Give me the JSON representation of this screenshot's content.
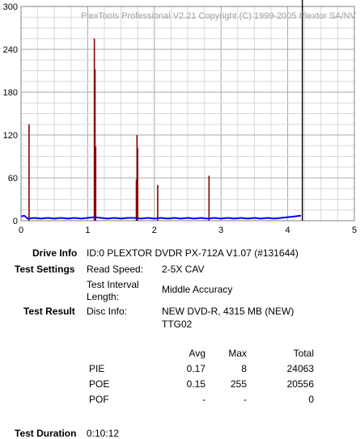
{
  "app": {
    "watermark": "PlexTools Professional V2.21 Copyright (C) 1999-2005 Plextor SA/NV"
  },
  "chart_data": {
    "type": "bar",
    "xlim": [
      0,
      5
    ],
    "ylim": [
      0,
      300
    ],
    "x_ticks": [
      0,
      1,
      2,
      3,
      4,
      5
    ],
    "y_ticks": [
      0,
      60,
      120,
      180,
      240,
      300
    ],
    "grid": true,
    "end_marker_x": 4.22,
    "colors": {
      "poe_spikes": "#8b0000",
      "pie_baseline": "#0000ff",
      "end_marker": "#000000",
      "grid": "#c0c0c0"
    },
    "series": [
      {
        "kind": "poe-spikes",
        "points": [
          {
            "x": 0.12,
            "y": 135
          },
          {
            "x": 1.1,
            "y": 255
          },
          {
            "x": 1.11,
            "y": 212
          },
          {
            "x": 1.12,
            "y": 104
          },
          {
            "x": 1.74,
            "y": 120
          },
          {
            "x": 1.75,
            "y": 102
          },
          {
            "x": 1.73,
            "y": 58
          },
          {
            "x": 2.05,
            "y": 50
          },
          {
            "x": 2.82,
            "y": 63
          }
        ]
      },
      {
        "kind": "pie-baseline",
        "points": [
          {
            "x": 0.0,
            "y": 6
          },
          {
            "x": 0.05,
            "y": 7
          },
          {
            "x": 0.1,
            "y": 3
          },
          {
            "x": 0.2,
            "y": 4
          },
          {
            "x": 0.3,
            "y": 3
          },
          {
            "x": 0.4,
            "y": 4
          },
          {
            "x": 0.5,
            "y": 3
          },
          {
            "x": 0.6,
            "y": 4
          },
          {
            "x": 0.7,
            "y": 3
          },
          {
            "x": 0.8,
            "y": 4
          },
          {
            "x": 0.9,
            "y": 3
          },
          {
            "x": 1.0,
            "y": 4
          },
          {
            "x": 1.1,
            "y": 5
          },
          {
            "x": 1.2,
            "y": 4
          },
          {
            "x": 1.3,
            "y": 3
          },
          {
            "x": 1.4,
            "y": 4
          },
          {
            "x": 1.5,
            "y": 3
          },
          {
            "x": 1.6,
            "y": 4
          },
          {
            "x": 1.7,
            "y": 4
          },
          {
            "x": 1.8,
            "y": 3
          },
          {
            "x": 1.9,
            "y": 4
          },
          {
            "x": 2.0,
            "y": 3
          },
          {
            "x": 2.1,
            "y": 4
          },
          {
            "x": 2.2,
            "y": 3
          },
          {
            "x": 2.3,
            "y": 4
          },
          {
            "x": 2.4,
            "y": 3
          },
          {
            "x": 2.5,
            "y": 4
          },
          {
            "x": 2.6,
            "y": 3
          },
          {
            "x": 2.7,
            "y": 4
          },
          {
            "x": 2.8,
            "y": 3
          },
          {
            "x": 2.9,
            "y": 4
          },
          {
            "x": 3.0,
            "y": 3
          },
          {
            "x": 3.1,
            "y": 4
          },
          {
            "x": 3.2,
            "y": 3
          },
          {
            "x": 3.3,
            "y": 4
          },
          {
            "x": 3.4,
            "y": 3
          },
          {
            "x": 3.5,
            "y": 4
          },
          {
            "x": 3.6,
            "y": 3
          },
          {
            "x": 3.7,
            "y": 4
          },
          {
            "x": 3.8,
            "y": 3
          },
          {
            "x": 3.9,
            "y": 4
          },
          {
            "x": 4.0,
            "y": 5
          },
          {
            "x": 4.1,
            "y": 6
          },
          {
            "x": 4.2,
            "y": 7
          }
        ]
      }
    ]
  },
  "info": {
    "drive_info_label": "Drive Info",
    "drive_info_value": "ID:0 PLEXTOR DVDR PX-712A V1.07 (#131644)",
    "test_settings_label": "Test Settings",
    "read_speed_label": "Read Speed:",
    "read_speed_value": "2-5X CAV",
    "interval_label_line1": "Test Interval",
    "interval_label_line2": "Length:",
    "interval_value": "Middle Accuracy",
    "test_result_label": "Test Result",
    "disc_info_label": "Disc Info:",
    "disc_info_line1": "NEW DVD-R, 4315 MB (NEW)",
    "disc_info_line2": "TTG02",
    "duration_label": "Test Duration",
    "duration_value": "0:10:12"
  },
  "results": {
    "headers": {
      "avg": "Avg",
      "max": "Max",
      "total": "Total"
    },
    "rows": [
      {
        "name": "PIE",
        "avg": "0.17",
        "max": "8",
        "total": "24063"
      },
      {
        "name": "POE",
        "avg": "0.15",
        "max": "255",
        "total": "20556"
      },
      {
        "name": "POF",
        "avg": "-",
        "max": "-",
        "total": "0"
      }
    ]
  }
}
